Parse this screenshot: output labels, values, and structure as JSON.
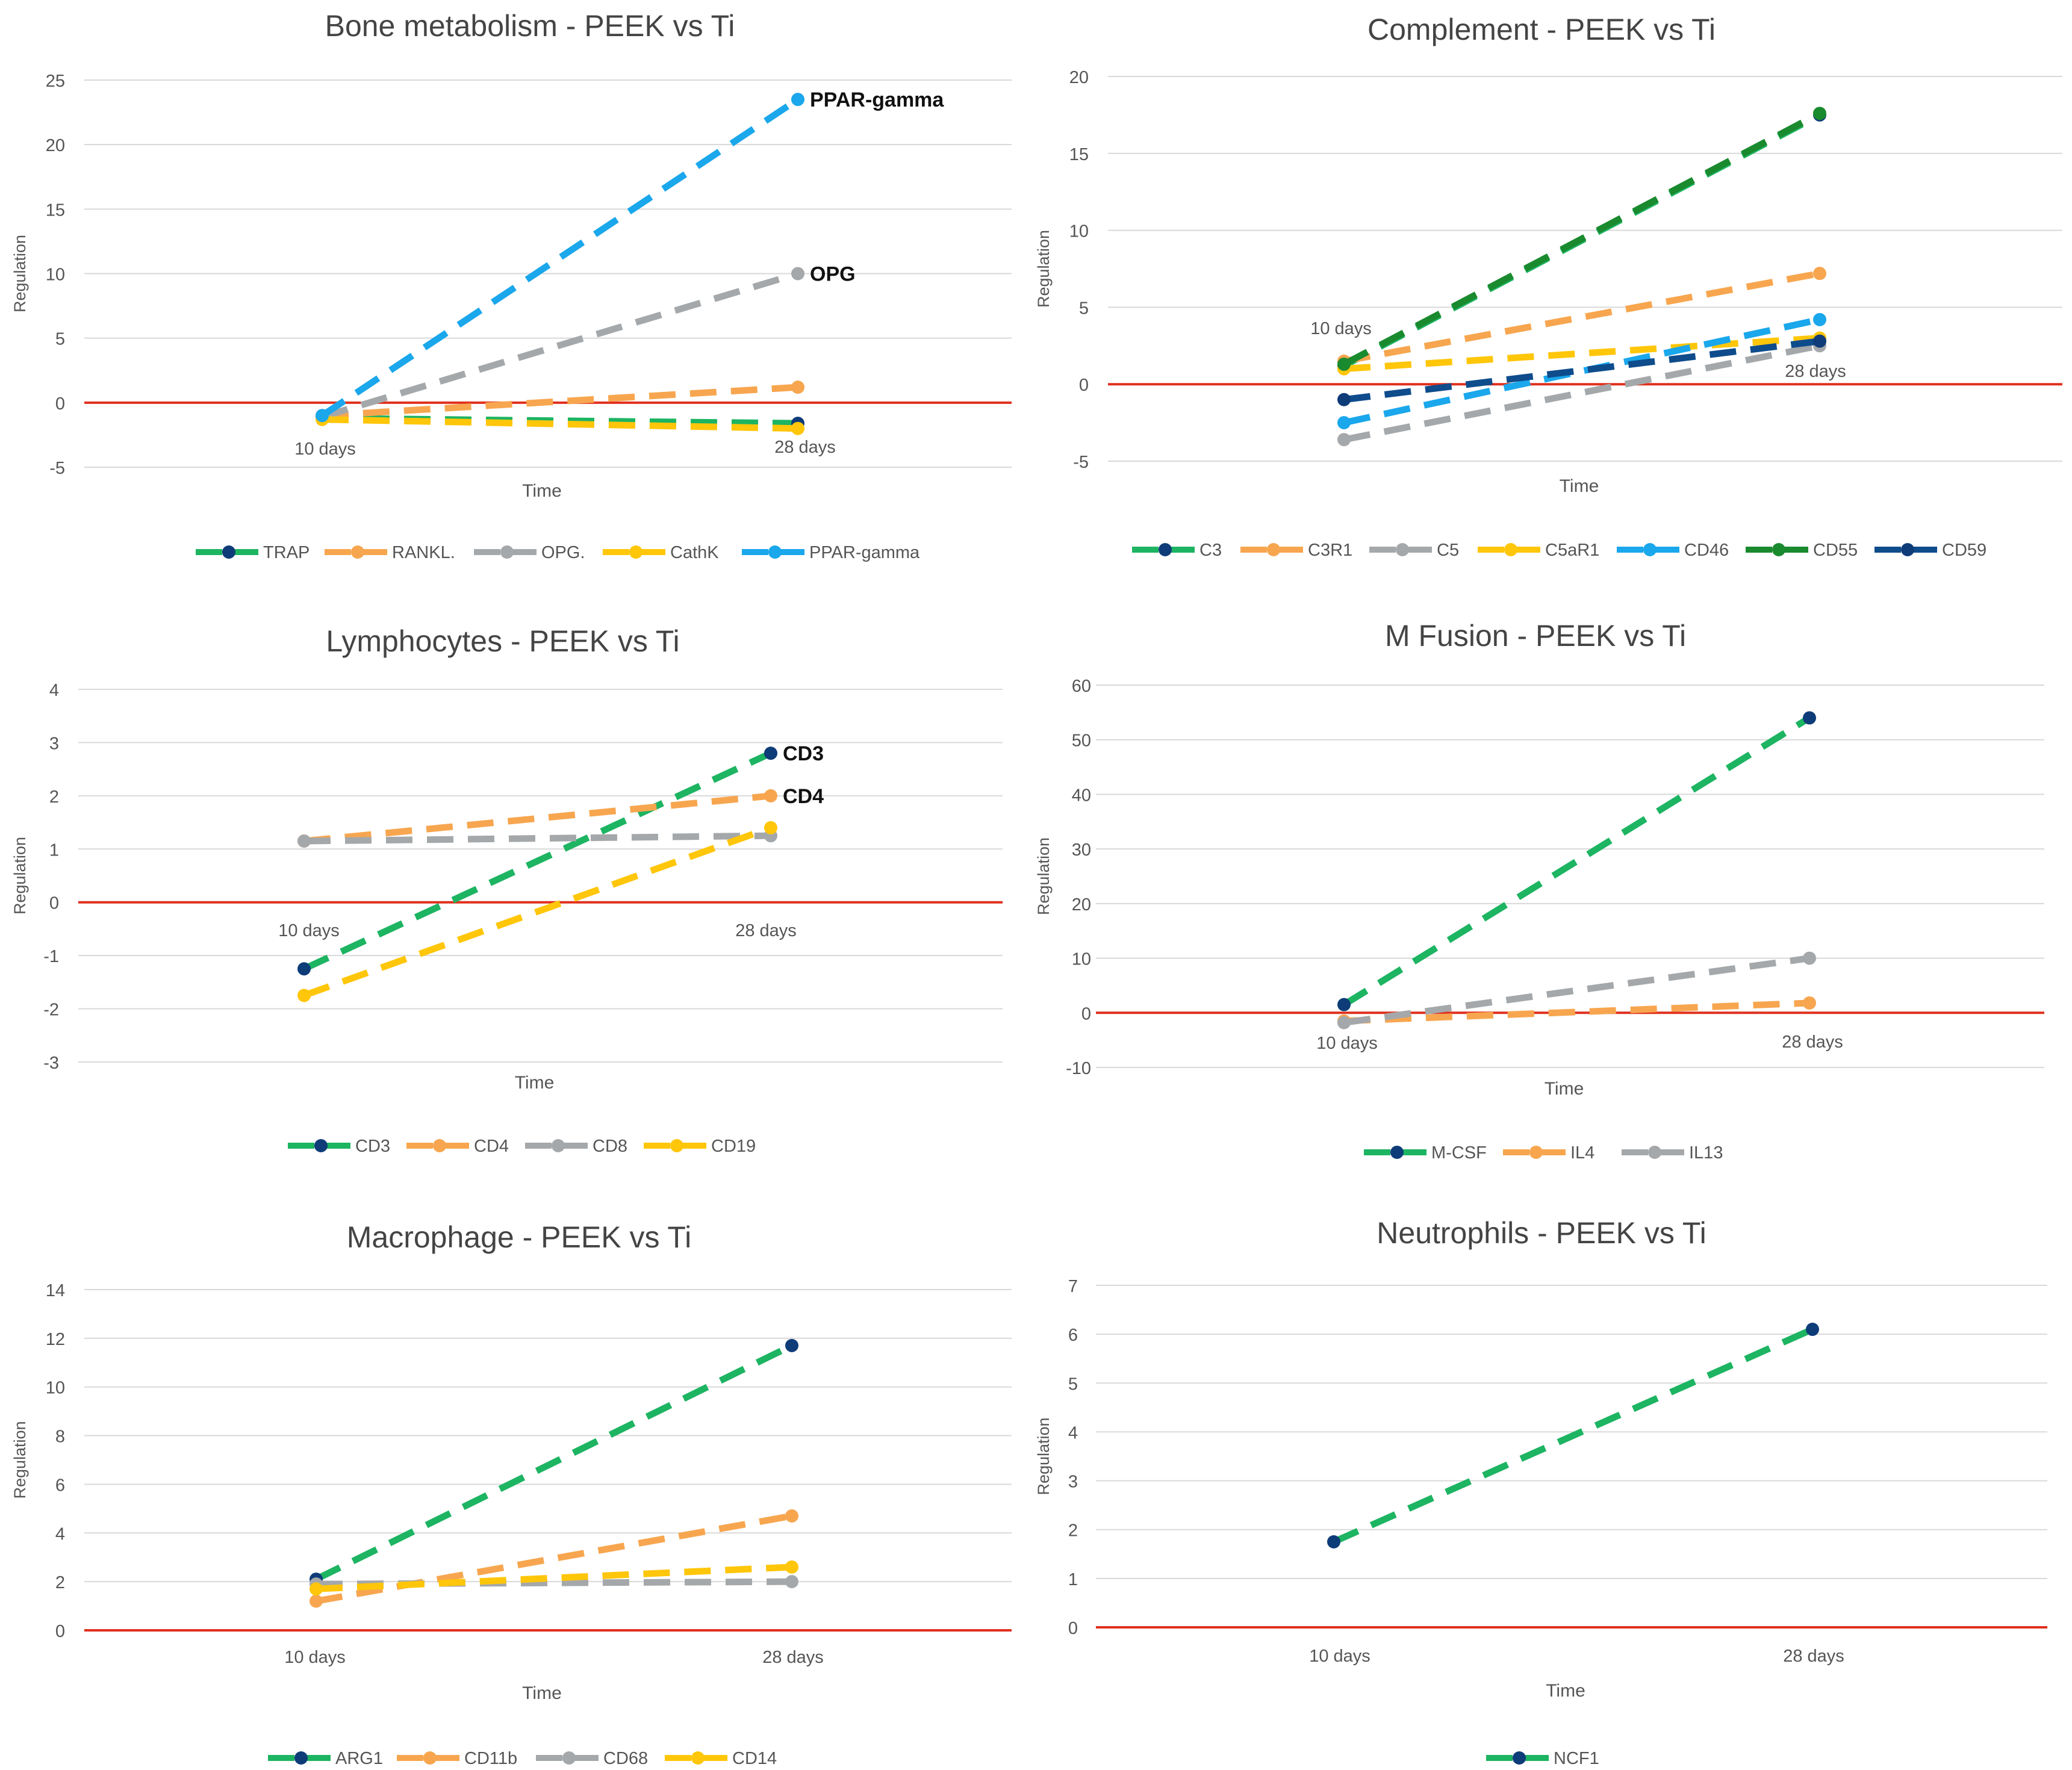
{
  "colors": {
    "green": "#1DB462",
    "orange": "#F7A64F",
    "gray": "#A5A8AA",
    "yellow": "#FFC60A",
    "blue": "#1AA7EC",
    "darkgreen": "#1A8A2E",
    "navy": "#0E4C8C",
    "marker_navy": "#0E3C78",
    "zero_line": "#E0301E",
    "grid": "#D9D9D9",
    "text": "#555555",
    "title": "#444444"
  },
  "chart_data": [
    {
      "type": "line",
      "title": "Bone metabolism - PEEK vs Ti",
      "xlabel": "Time",
      "ylabel": "Regulation",
      "categories": [
        "10 days",
        "28 days"
      ],
      "ylim": [
        -5,
        25
      ],
      "yticks": [
        "-5",
        "0",
        "5",
        "10",
        "15",
        "20",
        "25"
      ],
      "series": [
        {
          "name": "TRAP",
          "color": "green",
          "marker": "marker_navy",
          "values": [
            -1.2,
            -1.6
          ]
        },
        {
          "name": "RANKL",
          "legend_label": "RANKL.",
          "color": "orange",
          "marker": "orange",
          "values": [
            -1.0,
            1.2
          ]
        },
        {
          "name": "OPG",
          "legend_label": "OPG.",
          "color": "gray",
          "marker": "gray",
          "values": [
            -1.1,
            10.0
          ],
          "annotation": "OPG"
        },
        {
          "name": "CathK",
          "color": "yellow",
          "marker": "yellow",
          "values": [
            -1.3,
            -2.0
          ]
        },
        {
          "name": "PPAR-gamma",
          "color": "blue",
          "marker": "blue",
          "values": [
            -1.0,
            23.5
          ],
          "annotation": "PPAR-gamma"
        }
      ]
    },
    {
      "type": "line",
      "title": "Complement - PEEK vs Ti",
      "xlabel": "Time",
      "ylabel": "Regulation",
      "categories": [
        "10 days",
        "28 days"
      ],
      "ylim": [
        -5,
        20
      ],
      "yticks": [
        "-5",
        "0",
        "5",
        "10",
        "15",
        "20"
      ],
      "series": [
        {
          "name": "C3",
          "color": "green",
          "marker": "marker_navy",
          "values": [
            1.2,
            17.5
          ]
        },
        {
          "name": "C3R1",
          "color": "orange",
          "marker": "orange",
          "values": [
            1.5,
            7.2
          ]
        },
        {
          "name": "C5",
          "color": "gray",
          "marker": "gray",
          "values": [
            -3.6,
            2.5
          ]
        },
        {
          "name": "C5aR1",
          "color": "yellow",
          "marker": "yellow",
          "values": [
            1.0,
            3.0
          ]
        },
        {
          "name": "CD46",
          "color": "blue",
          "marker": "blue",
          "values": [
            -2.5,
            4.2
          ]
        },
        {
          "name": "CD55",
          "color": "darkgreen",
          "marker": "darkgreen",
          "values": [
            1.3,
            17.6
          ]
        },
        {
          "name": "CD59",
          "color": "navy",
          "marker": "marker_navy",
          "values": [
            -1.0,
            2.8
          ]
        }
      ]
    },
    {
      "type": "line",
      "title": "Lymphocytes - PEEK vs Ti",
      "xlabel": "Time",
      "ylabel": "Regulation",
      "categories": [
        "10 days",
        "28 days"
      ],
      "ylim": [
        -3,
        4
      ],
      "yticks": [
        "-3",
        "-2",
        "-1",
        "0",
        "1",
        "2",
        "3",
        "4"
      ],
      "series": [
        {
          "name": "CD3",
          "color": "green",
          "marker": "marker_navy",
          "values": [
            -1.25,
            2.8
          ],
          "annotation": "CD3"
        },
        {
          "name": "CD4",
          "color": "orange",
          "marker": "orange",
          "values": [
            1.15,
            2.0
          ],
          "annotation": "CD4"
        },
        {
          "name": "CD8",
          "color": "gray",
          "marker": "gray",
          "values": [
            1.15,
            1.25
          ]
        },
        {
          "name": "CD19",
          "color": "yellow",
          "marker": "yellow",
          "values": [
            -1.75,
            1.4
          ]
        }
      ]
    },
    {
      "type": "line",
      "title": "M Fusion - PEEK vs Ti",
      "xlabel": "Time",
      "ylabel": "Regulation",
      "categories": [
        "10 days",
        "28 days"
      ],
      "ylim": [
        -10,
        60
      ],
      "yticks": [
        "-10",
        "0",
        "10",
        "20",
        "30",
        "40",
        "50",
        "60"
      ],
      "series": [
        {
          "name": "M-CSF",
          "color": "green",
          "marker": "marker_navy",
          "values": [
            1.5,
            54.0
          ]
        },
        {
          "name": "IL4",
          "color": "orange",
          "marker": "orange",
          "values": [
            -1.5,
            1.8
          ]
        },
        {
          "name": "IL13",
          "color": "gray",
          "marker": "gray",
          "values": [
            -1.8,
            10.0
          ]
        }
      ]
    },
    {
      "type": "line",
      "title": "Macrophage - PEEK vs Ti",
      "xlabel": "Time",
      "ylabel": "Regulation",
      "categories": [
        "10 days",
        "28 days"
      ],
      "ylim": [
        0,
        14
      ],
      "yticks": [
        "0",
        "2",
        "4",
        "6",
        "8",
        "10",
        "12",
        "14"
      ],
      "series": [
        {
          "name": "ARG1",
          "color": "green",
          "marker": "marker_navy",
          "values": [
            2.1,
            11.7
          ]
        },
        {
          "name": "CD11b",
          "color": "orange",
          "marker": "orange",
          "values": [
            1.2,
            4.7
          ]
        },
        {
          "name": "CD68",
          "color": "gray",
          "marker": "gray",
          "values": [
            1.9,
            2.0
          ]
        },
        {
          "name": "CD14",
          "color": "yellow",
          "marker": "yellow",
          "values": [
            1.7,
            2.6
          ]
        }
      ]
    },
    {
      "type": "line",
      "title": "Neutrophils - PEEK vs Ti",
      "xlabel": "Time",
      "ylabel": "Regulation",
      "categories": [
        "10 days",
        "28 days"
      ],
      "ylim": [
        0,
        7
      ],
      "yticks": [
        "0",
        "1",
        "2",
        "3",
        "4",
        "5",
        "6",
        "7"
      ],
      "series": [
        {
          "name": "NCF1",
          "color": "green",
          "marker": "marker_navy",
          "values": [
            1.75,
            6.1
          ]
        }
      ]
    }
  ]
}
